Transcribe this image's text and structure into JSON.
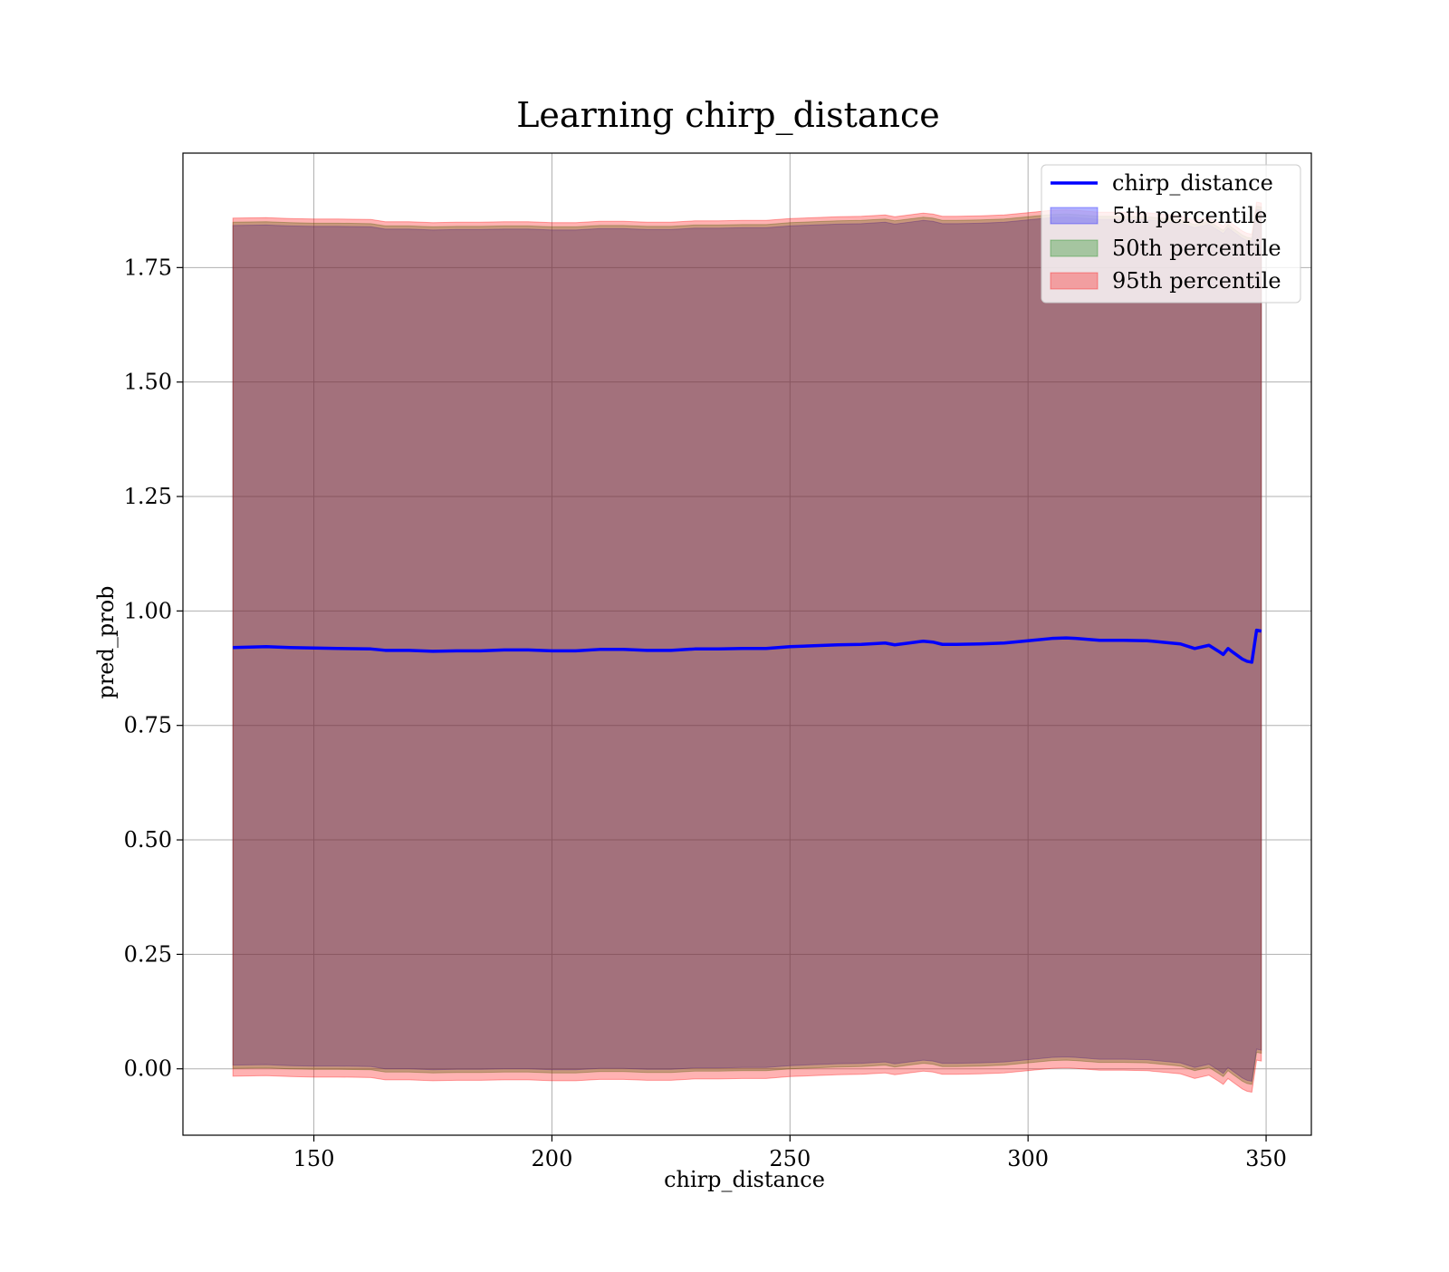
{
  "chart_data": {
    "type": "line",
    "title": "Learning chirp_distance",
    "xlabel": "chirp_distance",
    "ylabel": "pred_prob",
    "xlim": [
      122.5,
      359.5
    ],
    "ylim": [
      -0.145,
      2.0
    ],
    "xticks": [
      150,
      200,
      250,
      300,
      350
    ],
    "xtick_labels": [
      "150",
      "200",
      "250",
      "300",
      "350"
    ],
    "yticks": [
      0.0,
      0.25,
      0.5,
      0.75,
      1.0,
      1.25,
      1.5,
      1.75
    ],
    "ytick_labels": [
      "0.00",
      "0.25",
      "0.50",
      "0.75",
      "1.00",
      "1.25",
      "1.50",
      "1.75"
    ],
    "grid": true,
    "legend_position": "top-right",
    "x": [
      133,
      140,
      145,
      150,
      155,
      162,
      165,
      170,
      175,
      180,
      185,
      190,
      195,
      200,
      205,
      210,
      215,
      220,
      225,
      230,
      235,
      240,
      245,
      250,
      255,
      260,
      265,
      270,
      272,
      275,
      278,
      280,
      282,
      285,
      290,
      295,
      300,
      305,
      308,
      310,
      315,
      320,
      325,
      330,
      332,
      335,
      338,
      340,
      341,
      342,
      343,
      345,
      346,
      347,
      348,
      349
    ],
    "series": [
      {
        "name": "chirp_distance",
        "kind": "line",
        "color": "#0000ff",
        "values": [
          0.92,
          0.922,
          0.92,
          0.919,
          0.918,
          0.917,
          0.914,
          0.914,
          0.912,
          0.913,
          0.913,
          0.915,
          0.915,
          0.913,
          0.913,
          0.916,
          0.916,
          0.914,
          0.914,
          0.917,
          0.917,
          0.918,
          0.918,
          0.922,
          0.924,
          0.926,
          0.927,
          0.93,
          0.926,
          0.93,
          0.934,
          0.932,
          0.927,
          0.927,
          0.928,
          0.93,
          0.935,
          0.94,
          0.941,
          0.94,
          0.936,
          0.936,
          0.935,
          0.93,
          0.928,
          0.918,
          0.925,
          0.912,
          0.905,
          0.918,
          0.91,
          0.895,
          0.89,
          0.888,
          0.958,
          0.956
        ]
      },
      {
        "name": "5th percentile",
        "kind": "band",
        "color": "#0000ff",
        "lower": [
          0.008,
          0.009,
          0.007,
          0.006,
          0.006,
          0.005,
          0.0,
          0.0,
          -0.002,
          -0.001,
          -0.001,
          0.0,
          0.0,
          -0.002,
          -0.002,
          0.001,
          0.001,
          -0.001,
          -0.001,
          0.002,
          0.002,
          0.003,
          0.003,
          0.007,
          0.009,
          0.011,
          0.012,
          0.015,
          0.011,
          0.015,
          0.019,
          0.017,
          0.012,
          0.012,
          0.013,
          0.015,
          0.02,
          0.025,
          0.026,
          0.025,
          0.021,
          0.021,
          0.02,
          0.015,
          0.013,
          0.003,
          0.01,
          -0.003,
          -0.01,
          0.003,
          -0.005,
          -0.02,
          -0.025,
          -0.027,
          0.043,
          0.041
        ],
        "upper": [
          1.842,
          1.843,
          1.841,
          1.84,
          1.84,
          1.839,
          1.834,
          1.834,
          1.832,
          1.833,
          1.833,
          1.834,
          1.834,
          1.832,
          1.832,
          1.835,
          1.835,
          1.833,
          1.833,
          1.836,
          1.836,
          1.837,
          1.837,
          1.841,
          1.843,
          1.845,
          1.846,
          1.849,
          1.845,
          1.849,
          1.853,
          1.851,
          1.846,
          1.846,
          1.847,
          1.849,
          1.854,
          1.859,
          1.86,
          1.859,
          1.855,
          1.855,
          1.854,
          1.849,
          1.847,
          1.837,
          1.844,
          1.831,
          1.824,
          1.837,
          1.829,
          1.814,
          1.809,
          1.807,
          1.877,
          1.875
        ]
      },
      {
        "name": "50th percentile",
        "kind": "band",
        "color": "#008000",
        "lower": [
          0.001,
          0.002,
          0.0,
          -0.001,
          -0.001,
          -0.002,
          -0.007,
          -0.007,
          -0.009,
          -0.008,
          -0.008,
          -0.007,
          -0.007,
          -0.009,
          -0.009,
          -0.006,
          -0.006,
          -0.008,
          -0.008,
          -0.005,
          -0.005,
          -0.004,
          -0.004,
          0.0,
          0.002,
          0.004,
          0.005,
          0.008,
          0.004,
          0.008,
          0.012,
          0.01,
          0.005,
          0.005,
          0.006,
          0.008,
          0.013,
          0.018,
          0.019,
          0.018,
          0.014,
          0.014,
          0.013,
          0.008,
          0.006,
          -0.004,
          0.003,
          -0.01,
          -0.017,
          -0.004,
          -0.012,
          -0.027,
          -0.032,
          -0.034,
          0.036,
          0.034
        ],
        "upper": [
          1.849,
          1.85,
          1.848,
          1.847,
          1.847,
          1.846,
          1.841,
          1.841,
          1.839,
          1.84,
          1.84,
          1.841,
          1.841,
          1.839,
          1.839,
          1.842,
          1.842,
          1.84,
          1.84,
          1.843,
          1.843,
          1.844,
          1.844,
          1.848,
          1.85,
          1.852,
          1.853,
          1.856,
          1.852,
          1.856,
          1.86,
          1.858,
          1.853,
          1.853,
          1.854,
          1.856,
          1.861,
          1.866,
          1.867,
          1.866,
          1.862,
          1.862,
          1.861,
          1.856,
          1.854,
          1.844,
          1.851,
          1.838,
          1.831,
          1.844,
          1.836,
          1.821,
          1.816,
          1.814,
          1.884,
          1.882
        ]
      },
      {
        "name": "95th percentile",
        "kind": "band",
        "color": "#ff0000",
        "lower": [
          -0.016,
          -0.015,
          -0.017,
          -0.018,
          -0.018,
          -0.019,
          -0.024,
          -0.024,
          -0.026,
          -0.025,
          -0.025,
          -0.024,
          -0.024,
          -0.026,
          -0.026,
          -0.023,
          -0.023,
          -0.025,
          -0.025,
          -0.022,
          -0.022,
          -0.021,
          -0.021,
          -0.017,
          -0.015,
          -0.013,
          -0.012,
          -0.009,
          -0.013,
          -0.009,
          -0.005,
          -0.007,
          -0.012,
          -0.012,
          -0.011,
          -0.009,
          -0.004,
          0.001,
          0.002,
          0.001,
          -0.003,
          -0.003,
          -0.004,
          -0.009,
          -0.011,
          -0.021,
          -0.014,
          -0.027,
          -0.034,
          -0.021,
          -0.029,
          -0.044,
          -0.049,
          -0.051,
          0.019,
          0.017
        ],
        "upper": [
          1.858,
          1.859,
          1.857,
          1.856,
          1.856,
          1.855,
          1.85,
          1.85,
          1.848,
          1.849,
          1.849,
          1.85,
          1.85,
          1.848,
          1.848,
          1.851,
          1.851,
          1.849,
          1.849,
          1.852,
          1.852,
          1.853,
          1.853,
          1.857,
          1.859,
          1.861,
          1.862,
          1.865,
          1.861,
          1.865,
          1.869,
          1.867,
          1.862,
          1.862,
          1.863,
          1.865,
          1.87,
          1.875,
          1.876,
          1.875,
          1.871,
          1.871,
          1.87,
          1.865,
          1.863,
          1.853,
          1.86,
          1.847,
          1.84,
          1.853,
          1.845,
          1.83,
          1.825,
          1.823,
          1.893,
          1.891
        ]
      }
    ]
  }
}
